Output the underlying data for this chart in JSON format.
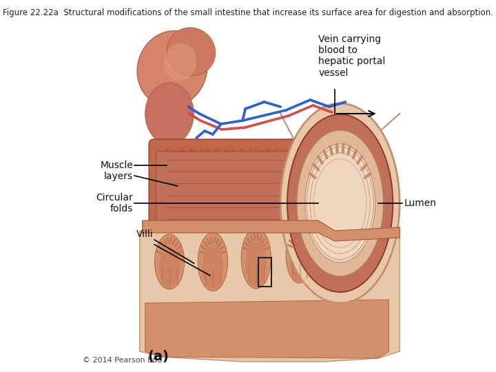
{
  "title": "Figure 22.22a  Structural modifications of the small intestine that increase its surface area for digestion and absorption.",
  "title_fontsize": 8.5,
  "title_color": "#222222",
  "bg_color": "#ffffff",
  "labels": {
    "vein": "Vein carrying\nblood to\nhepatic portal\nvessel",
    "muscle": "Muscle\nlayers",
    "circular": "Circular\nfolds",
    "villi": "Villi",
    "lumen": "Lumen"
  },
  "copyright": "© 2014 Pearson Edu",
  "part_label": "(a)",
  "label_fontsize": 10
}
